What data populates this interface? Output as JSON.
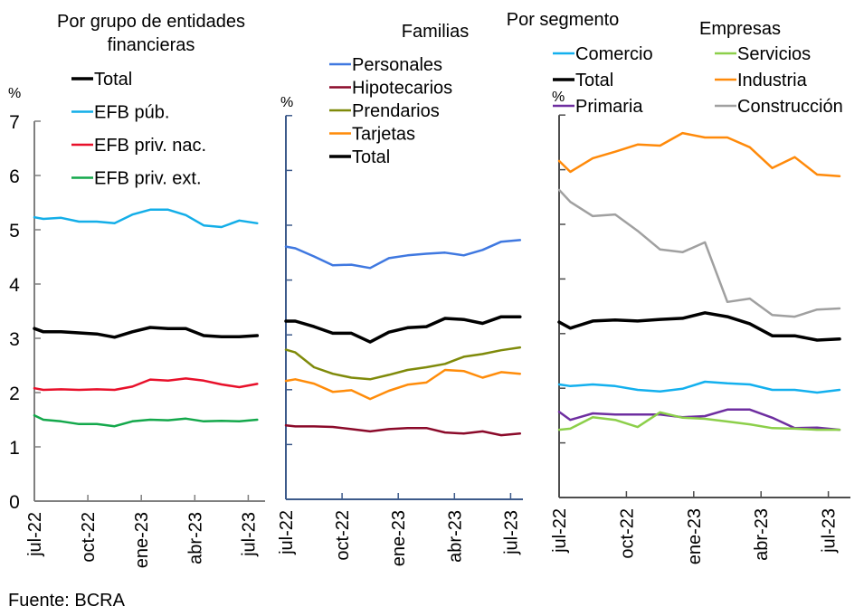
{
  "chart_data": [
    {
      "type": "line",
      "title": "Por grupo de entidades financieras",
      "title_lines": [
        "Por grupo de entidades",
        "financieras"
      ],
      "ylabel": "%",
      "ylim": [
        0,
        7
      ],
      "yticks": [
        0,
        1,
        2,
        3,
        4,
        5,
        6,
        7
      ],
      "xticks": [
        "jul-22",
        "oct-22",
        "ene-23",
        "abr-23",
        "jul-23"
      ],
      "xtick_months": [
        0,
        3,
        6,
        9,
        12
      ],
      "x_months": [
        0,
        0.5,
        1.5,
        2.5,
        3.5,
        4.5,
        5.5,
        6.5,
        7.5,
        8.5,
        9.5,
        10.5,
        11.5,
        12.5
      ],
      "legend": "top-center",
      "grid": false,
      "axis_color": "#7f7f7f",
      "series": [
        {
          "name": "Total",
          "color": "#000000",
          "width": 3.5,
          "values": [
            3.18,
            3.12,
            3.12,
            3.1,
            3.08,
            3.02,
            3.12,
            3.2,
            3.18,
            3.18,
            3.05,
            3.03,
            3.03,
            3.05
          ]
        },
        {
          "name": "EFB púb.",
          "color": "#13aee8",
          "width": 2.5,
          "values": [
            5.23,
            5.2,
            5.22,
            5.15,
            5.15,
            5.12,
            5.28,
            5.37,
            5.37,
            5.27,
            5.08,
            5.05,
            5.17,
            5.12
          ]
        },
        {
          "name": "EFB priv. nac.",
          "color": "#e8102a",
          "width": 2.5,
          "values": [
            2.08,
            2.05,
            2.06,
            2.05,
            2.06,
            2.05,
            2.11,
            2.24,
            2.22,
            2.26,
            2.22,
            2.15,
            2.1,
            2.16
          ]
        },
        {
          "name": "EFB priv. ext.",
          "color": "#13a84b",
          "width": 2.5,
          "values": [
            1.58,
            1.5,
            1.47,
            1.42,
            1.42,
            1.38,
            1.47,
            1.5,
            1.49,
            1.52,
            1.47,
            1.48,
            1.47,
            1.5
          ]
        }
      ]
    },
    {
      "type": "line",
      "title": "Familias",
      "ylabel": "%",
      "ylim": [
        0,
        7
      ],
      "yticks": [
        0,
        1,
        2,
        3,
        4,
        5,
        6,
        7
      ],
      "xticks": [
        "jul-22",
        "oct-22",
        "ene-23",
        "abr-23",
        "jul-23"
      ],
      "xtick_months": [
        0,
        3,
        6,
        9,
        12
      ],
      "x_months": [
        0,
        0.5,
        1.5,
        2.5,
        3.5,
        4.5,
        5.5,
        6.5,
        7.5,
        8.5,
        9.5,
        10.5,
        11.5,
        12.5
      ],
      "legend": "top-center",
      "grid": false,
      "axis_color": "#3d5a8a",
      "series": [
        {
          "name": "Personales",
          "color": "#3f78e0",
          "width": 2.5,
          "values": [
            4.61,
            4.58,
            4.43,
            4.27,
            4.28,
            4.22,
            4.4,
            4.45,
            4.48,
            4.5,
            4.45,
            4.55,
            4.7,
            4.73
          ]
        },
        {
          "name": "Hipotecarios",
          "color": "#8b0a2a",
          "width": 2.5,
          "values": [
            1.35,
            1.33,
            1.33,
            1.32,
            1.28,
            1.24,
            1.28,
            1.3,
            1.3,
            1.22,
            1.2,
            1.24,
            1.17,
            1.2
          ]
        },
        {
          "name": "Prendarios",
          "color": "#7f8a0a",
          "width": 2.5,
          "values": [
            2.73,
            2.68,
            2.41,
            2.29,
            2.22,
            2.19,
            2.27,
            2.36,
            2.41,
            2.47,
            2.6,
            2.65,
            2.72,
            2.77
          ]
        },
        {
          "name": "Tarjetas",
          "color": "#ff8c0a",
          "width": 2.5,
          "values": [
            2.16,
            2.19,
            2.11,
            1.96,
            1.99,
            1.83,
            1.98,
            2.09,
            2.13,
            2.36,
            2.34,
            2.22,
            2.32,
            2.29
          ]
        },
        {
          "name": "Total",
          "color": "#000000",
          "width": 3.5,
          "values": [
            3.25,
            3.25,
            3.15,
            3.03,
            3.03,
            2.87,
            3.05,
            3.13,
            3.15,
            3.3,
            3.28,
            3.21,
            3.33,
            3.33
          ]
        }
      ]
    },
    {
      "type": "line",
      "title": "Empresas",
      "ylabel": "%",
      "ylim": [
        0,
        7
      ],
      "yticks": [
        0,
        1,
        2,
        3,
        4,
        5,
        6,
        7
      ],
      "xticks": [
        "jul-22",
        "oct-22",
        "ene-23",
        "abr-23",
        "jul-23"
      ],
      "xtick_months": [
        0,
        3,
        6,
        9,
        12
      ],
      "x_months": [
        0,
        0.5,
        1.5,
        2.5,
        3.5,
        4.5,
        5.5,
        6.5,
        7.5,
        8.5,
        9.5,
        10.5,
        11.5,
        12.5
      ],
      "legend": "top-two-columns",
      "grid": false,
      "axis_color": "#4d4d4d",
      "series": [
        {
          "name": "Comercio",
          "color": "#13b0ee",
          "width": 2.5,
          "values": [
            2.07,
            2.04,
            2.07,
            2.04,
            1.97,
            1.94,
            1.99,
            2.12,
            2.09,
            2.07,
            1.97,
            1.97,
            1.92,
            1.97
          ]
        },
        {
          "name": "Total",
          "color": "#000000",
          "width": 3.5,
          "values": [
            3.21,
            3.1,
            3.23,
            3.25,
            3.23,
            3.26,
            3.28,
            3.38,
            3.31,
            3.18,
            2.96,
            2.96,
            2.88,
            2.9
          ]
        },
        {
          "name": "Primaria",
          "color": "#6e2ea0",
          "width": 2.5,
          "values": [
            1.57,
            1.42,
            1.54,
            1.52,
            1.52,
            1.52,
            1.47,
            1.49,
            1.61,
            1.61,
            1.46,
            1.27,
            1.28,
            1.24
          ]
        },
        {
          "name": "Servicios",
          "color": "#8ccf4a",
          "width": 2.5,
          "values": [
            1.24,
            1.26,
            1.47,
            1.42,
            1.29,
            1.56,
            1.46,
            1.44,
            1.39,
            1.34,
            1.27,
            1.26,
            1.24,
            1.24
          ]
        },
        {
          "name": "Industria",
          "color": "#ff8a0a",
          "width": 2.5,
          "values": [
            6.16,
            5.96,
            6.21,
            6.33,
            6.46,
            6.44,
            6.67,
            6.59,
            6.59,
            6.41,
            6.03,
            6.23,
            5.91,
            5.88
          ]
        },
        {
          "name": "Construcción",
          "color": "#a0a0a0",
          "width": 2.5,
          "values": [
            5.63,
            5.41,
            5.15,
            5.18,
            4.88,
            4.54,
            4.49,
            4.67,
            3.58,
            3.64,
            3.34,
            3.31,
            3.44,
            3.46
          ]
        }
      ]
    }
  ],
  "header": {
    "segment_title": "Por segmento"
  },
  "footer": {
    "source": "Fuente: BCRA"
  }
}
